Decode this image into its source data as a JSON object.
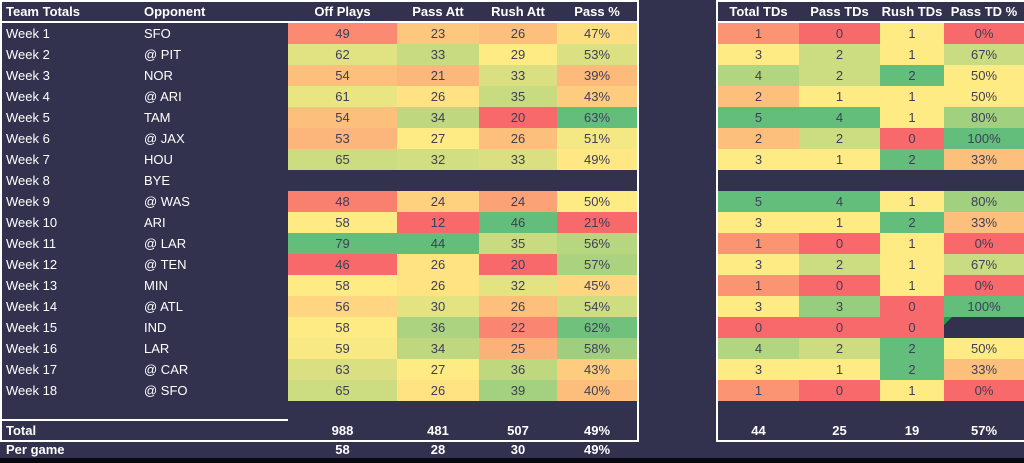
{
  "heatmap": {
    "min_color": "#F8696B",
    "mid_color": "#FFEB84",
    "max_color": "#63BE7B",
    "midpoint_rule": "50th percentile per column"
  },
  "theme": {
    "background": "#32324E",
    "cell_text": "#3E3E58",
    "label_text": "#FFFFFF",
    "border": "#FFFFFF",
    "bottom_bar": "#08080F",
    "error_flag_green": "#1FA048"
  },
  "left_headers": [
    "Team Totals",
    "Opponent",
    "Off Plays",
    "Pass Att",
    "Rush Att",
    "Pass %"
  ],
  "right_headers": [
    "Total TDs",
    "Pass TDs",
    "Rush TDs",
    "Pass TD %"
  ],
  "rows": [
    {
      "week": "Week 1",
      "opponent": "SFO",
      "off_plays": 49,
      "pass_att": 23,
      "rush_att": 26,
      "pass_pct": "47%",
      "total_tds": 1,
      "pass_tds": 0,
      "rush_tds": 1,
      "pass_td_pct": "0%"
    },
    {
      "week": "Week 2",
      "opponent": "@ PIT",
      "off_plays": 62,
      "pass_att": 33,
      "rush_att": 29,
      "pass_pct": "53%",
      "total_tds": 3,
      "pass_tds": 2,
      "rush_tds": 1,
      "pass_td_pct": "67%"
    },
    {
      "week": "Week 3",
      "opponent": "NOR",
      "off_plays": 54,
      "pass_att": 21,
      "rush_att": 33,
      "pass_pct": "39%",
      "total_tds": 4,
      "pass_tds": 2,
      "rush_tds": 2,
      "pass_td_pct": "50%"
    },
    {
      "week": "Week 4",
      "opponent": "@ ARI",
      "off_plays": 61,
      "pass_att": 26,
      "rush_att": 35,
      "pass_pct": "43%",
      "total_tds": 2,
      "pass_tds": 1,
      "rush_tds": 1,
      "pass_td_pct": "50%"
    },
    {
      "week": "Week 5",
      "opponent": "TAM",
      "off_plays": 54,
      "pass_att": 34,
      "rush_att": 20,
      "pass_pct": "63%",
      "total_tds": 5,
      "pass_tds": 4,
      "rush_tds": 1,
      "pass_td_pct": "80%"
    },
    {
      "week": "Week 6",
      "opponent": "@ JAX",
      "off_plays": 53,
      "pass_att": 27,
      "rush_att": 26,
      "pass_pct": "51%",
      "total_tds": 2,
      "pass_tds": 2,
      "rush_tds": 0,
      "pass_td_pct": "100%"
    },
    {
      "week": "Week 7",
      "opponent": "HOU",
      "off_plays": 65,
      "pass_att": 32,
      "rush_att": 33,
      "pass_pct": "49%",
      "total_tds": 3,
      "pass_tds": 1,
      "rush_tds": 2,
      "pass_td_pct": "33%"
    },
    {
      "week": "Week 8",
      "opponent": "BYE",
      "off_plays": null,
      "pass_att": null,
      "rush_att": null,
      "pass_pct": null,
      "total_tds": null,
      "pass_tds": null,
      "rush_tds": null,
      "pass_td_pct": null
    },
    {
      "week": "Week 9",
      "opponent": "@ WAS",
      "off_plays": 48,
      "pass_att": 24,
      "rush_att": 24,
      "pass_pct": "50%",
      "total_tds": 5,
      "pass_tds": 4,
      "rush_tds": 1,
      "pass_td_pct": "80%"
    },
    {
      "week": "Week 10",
      "opponent": "ARI",
      "off_plays": 58,
      "pass_att": 12,
      "rush_att": 46,
      "pass_pct": "21%",
      "total_tds": 3,
      "pass_tds": 1,
      "rush_tds": 2,
      "pass_td_pct": "33%"
    },
    {
      "week": "Week 11",
      "opponent": "@ LAR",
      "off_plays": 79,
      "pass_att": 44,
      "rush_att": 35,
      "pass_pct": "56%",
      "total_tds": 1,
      "pass_tds": 0,
      "rush_tds": 1,
      "pass_td_pct": "0%"
    },
    {
      "week": "Week 12",
      "opponent": "@ TEN",
      "off_plays": 46,
      "pass_att": 26,
      "rush_att": 20,
      "pass_pct": "57%",
      "total_tds": 3,
      "pass_tds": 2,
      "rush_tds": 1,
      "pass_td_pct": "67%"
    },
    {
      "week": "Week 13",
      "opponent": "MIN",
      "off_plays": 58,
      "pass_att": 26,
      "rush_att": 32,
      "pass_pct": "45%",
      "total_tds": 1,
      "pass_tds": 0,
      "rush_tds": 1,
      "pass_td_pct": "0%"
    },
    {
      "week": "Week 14",
      "opponent": "@ ATL",
      "off_plays": 56,
      "pass_att": 30,
      "rush_att": 26,
      "pass_pct": "54%",
      "total_tds": 3,
      "pass_tds": 3,
      "rush_tds": 0,
      "pass_td_pct": "100%"
    },
    {
      "week": "Week 15",
      "opponent": "IND",
      "off_plays": 58,
      "pass_att": 36,
      "rush_att": 22,
      "pass_pct": "62%",
      "total_tds": 0,
      "pass_tds": 0,
      "rush_tds": 0,
      "pass_td_pct": null,
      "error_flag": true
    },
    {
      "week": "Week 16",
      "opponent": "LAR",
      "off_plays": 59,
      "pass_att": 34,
      "rush_att": 25,
      "pass_pct": "58%",
      "total_tds": 4,
      "pass_tds": 2,
      "rush_tds": 2,
      "pass_td_pct": "50%"
    },
    {
      "week": "Week 17",
      "opponent": "@ CAR",
      "off_plays": 63,
      "pass_att": 27,
      "rush_att": 36,
      "pass_pct": "43%",
      "total_tds": 3,
      "pass_tds": 1,
      "rush_tds": 2,
      "pass_td_pct": "33%"
    },
    {
      "week": "Week 18",
      "opponent": "@ SFO",
      "off_plays": 65,
      "pass_att": 26,
      "rush_att": 39,
      "pass_pct": "40%",
      "total_tds": 1,
      "pass_tds": 0,
      "rush_tds": 1,
      "pass_td_pct": "0%"
    }
  ],
  "totals": {
    "label": "Total",
    "off_plays": 988,
    "pass_att": 481,
    "rush_att": 507,
    "pass_pct": "49%",
    "total_tds": 44,
    "pass_tds": 25,
    "rush_tds": 19,
    "pass_td_pct": "57%"
  },
  "per_game": {
    "label": "Per game",
    "off_plays": 58,
    "pass_att": 28,
    "rush_att": 30,
    "pass_pct": "49%"
  }
}
